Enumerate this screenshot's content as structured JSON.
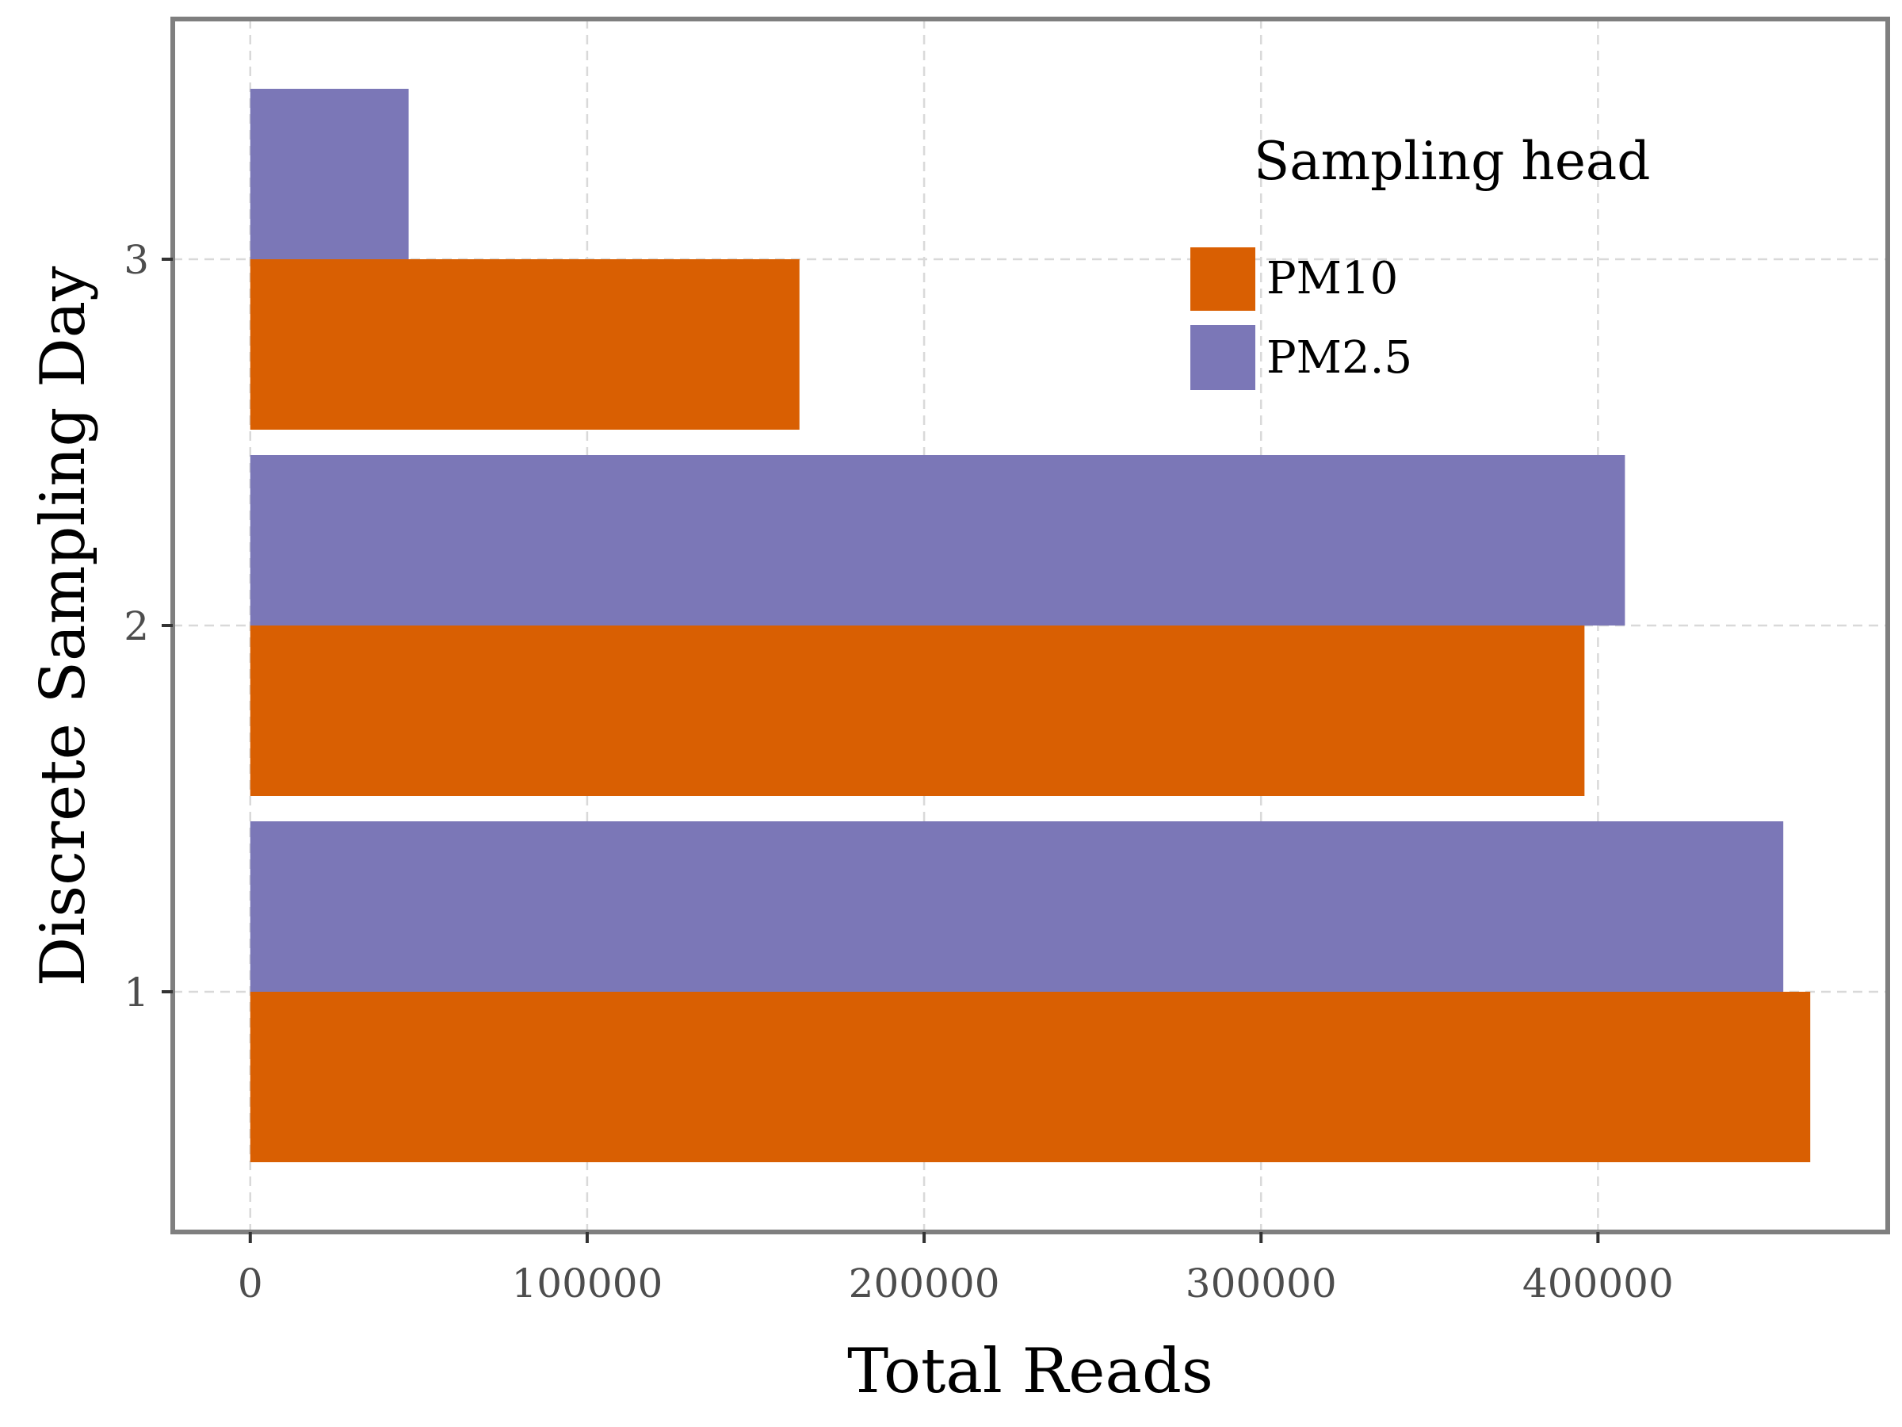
{
  "chart_data": {
    "type": "bar",
    "orientation": "horizontal",
    "categories": [
      "1",
      "2",
      "3"
    ],
    "series": [
      {
        "name": "PM10",
        "color": "#D95F02",
        "values": [
          463000,
          396000,
          163000
        ]
      },
      {
        "name": "PM2.5",
        "color": "#7B77B7",
        "values": [
          455000,
          408000,
          47000
        ]
      }
    ],
    "xlabel": "Total Reads",
    "ylabel": "Discrete Sampling Day",
    "xlim": [
      -23000,
      486000
    ],
    "xticks": [
      0,
      100000,
      200000,
      300000,
      400000
    ],
    "xtick_labels": [
      "0",
      "100000",
      "200000",
      "300000",
      "400000"
    ],
    "grid": true,
    "legend": {
      "title": "Sampling head",
      "position": "top-right"
    }
  }
}
